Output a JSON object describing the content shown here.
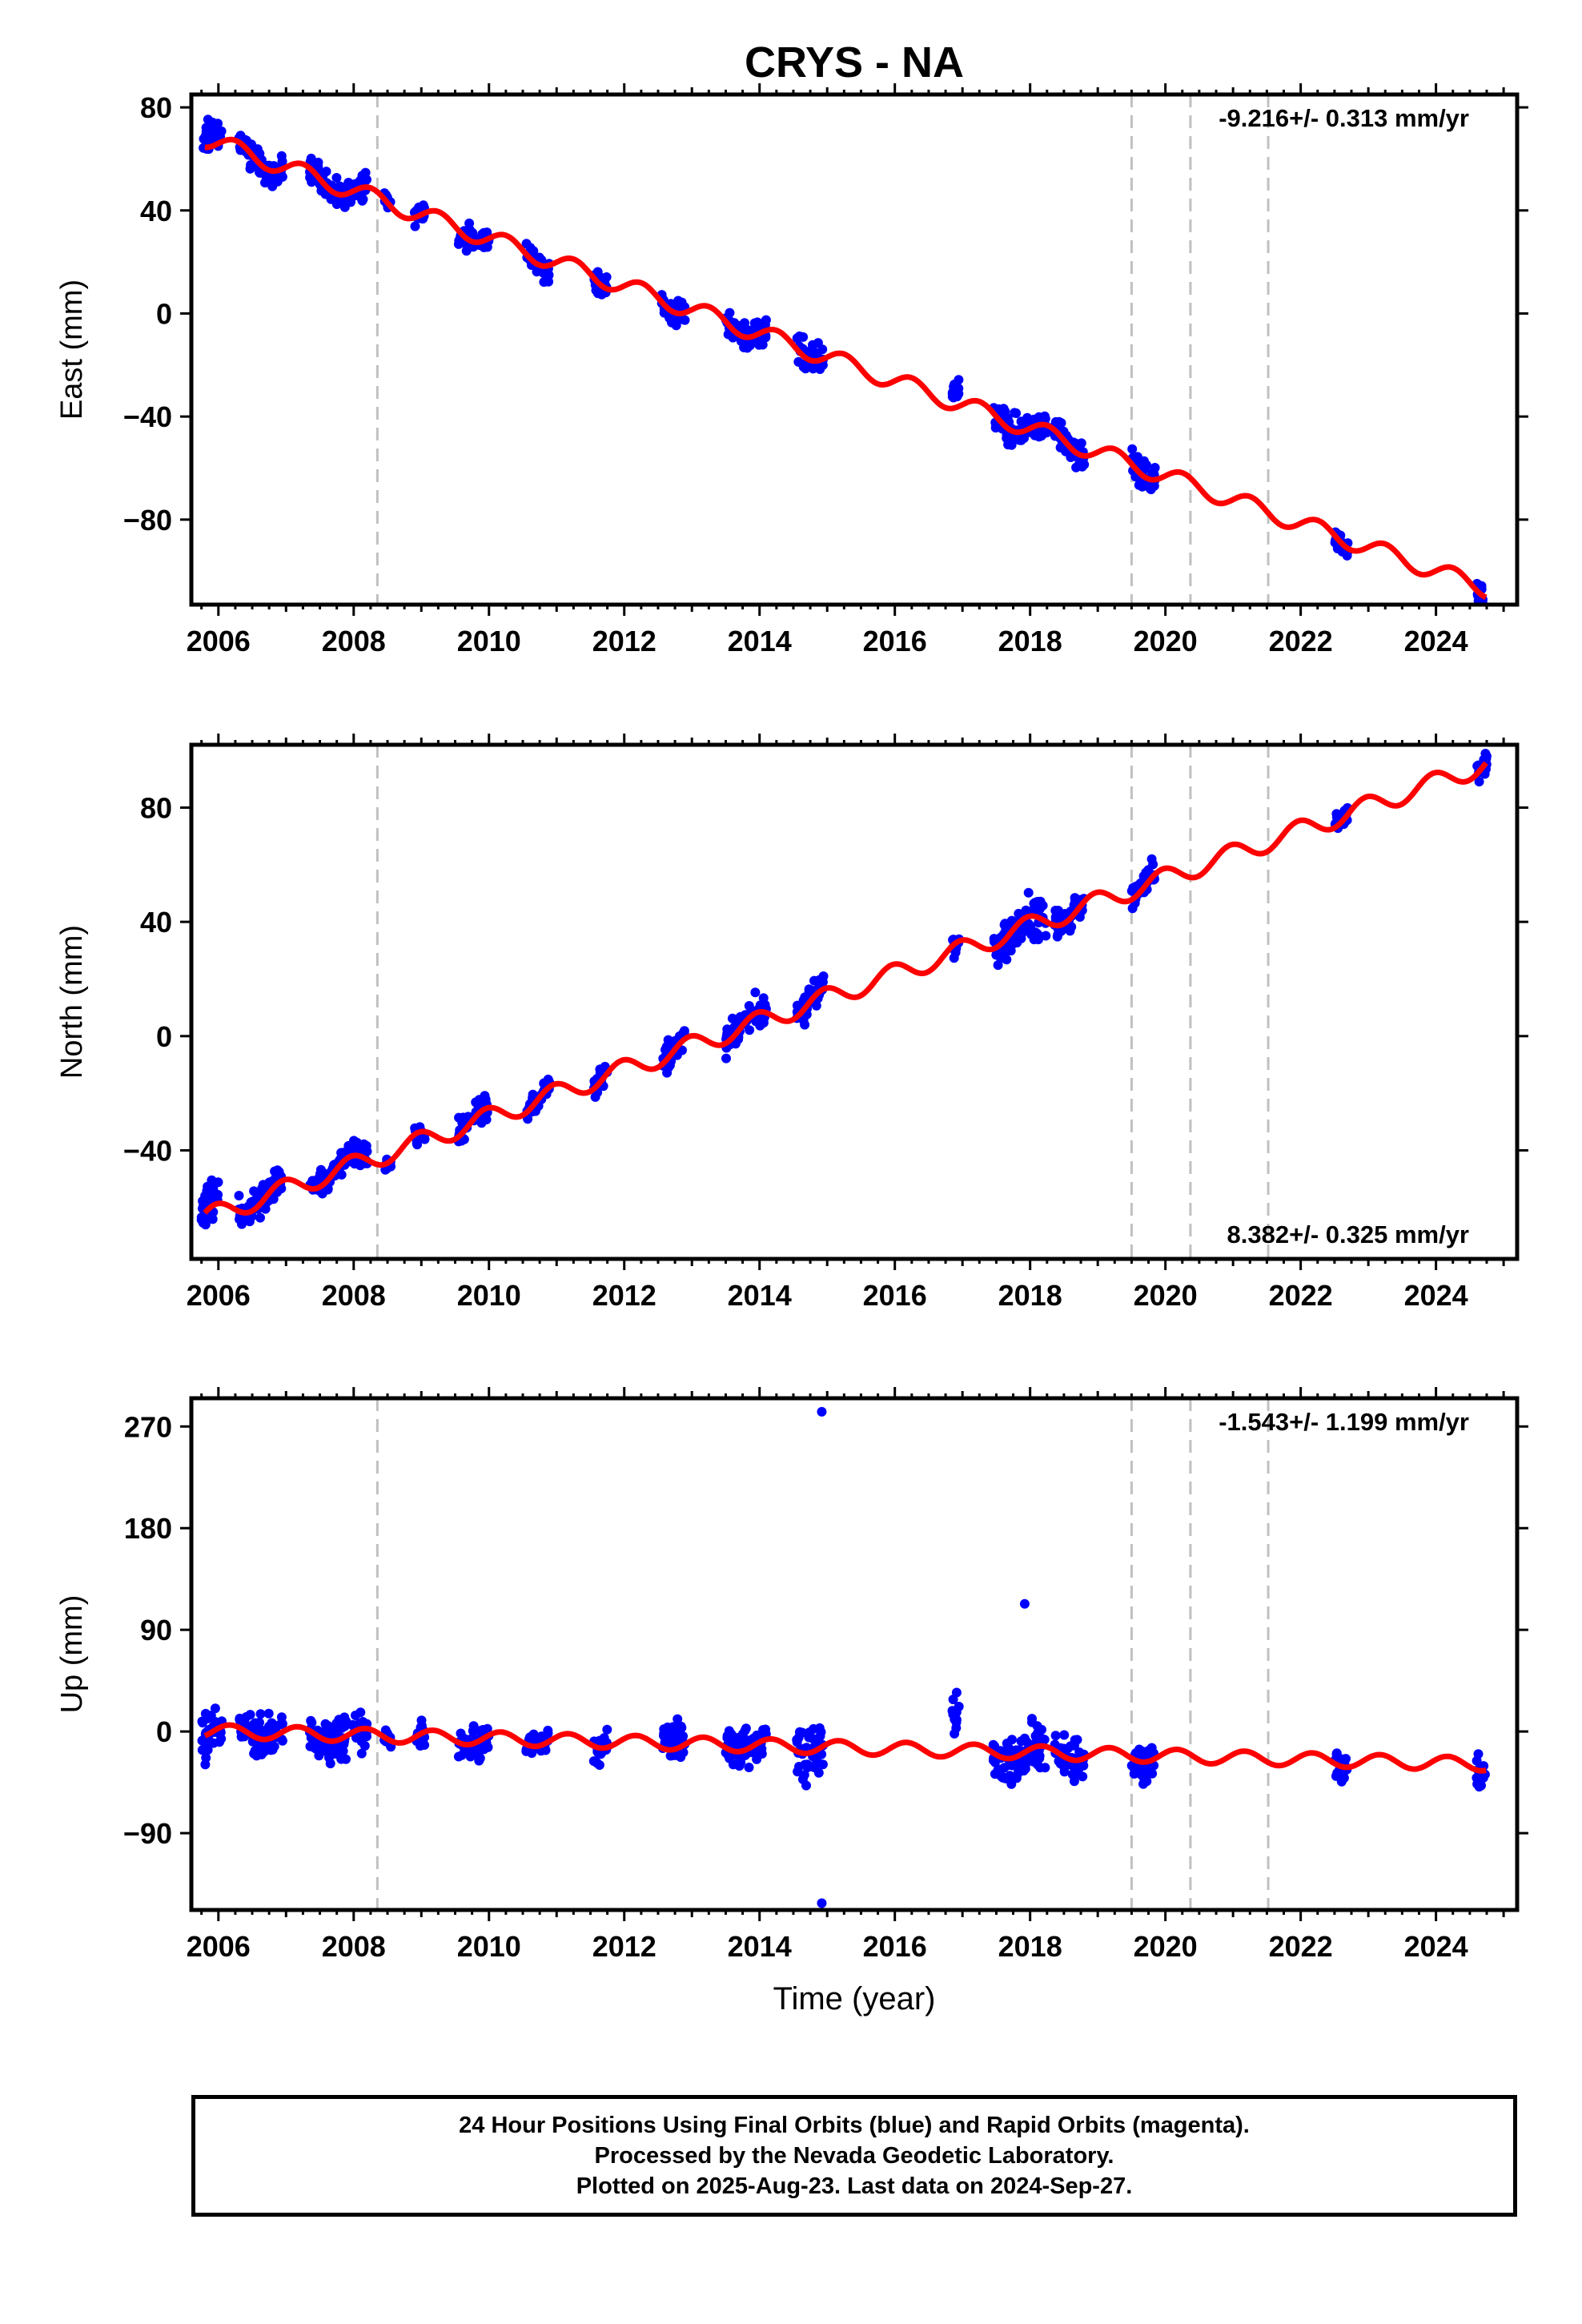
{
  "title": "CRYS - NA",
  "colors": {
    "final_orbits": "#0000ff",
    "model_fit": "#ff0000",
    "event_lines": "#c0c0c0",
    "frame": "#000000"
  },
  "footer": {
    "line1": "24 Hour Positions Using Final Orbits (blue) and Rapid Orbits (magenta).",
    "line2": "Processed by the Nevada Geodetic Laboratory.",
    "line3": "Plotted on 2025-Aug-23. Last data on 2024-Sep-27."
  },
  "chart_data": [
    {
      "type": "scatter",
      "component": "east",
      "ylabel": "East (mm)",
      "xlabel": "",
      "xlim": [
        2005.6,
        2025.2
      ],
      "ylim": [
        -113,
        85
      ],
      "xticks": [
        2006,
        2008,
        2010,
        2012,
        2014,
        2016,
        2018,
        2020,
        2022,
        2024
      ],
      "yticks": [
        -80,
        -40,
        0,
        40,
        80
      ],
      "rate_text": "-9.216+/- 0.313 mm/yr",
      "rate_position": "top-right",
      "event_lines": [
        2008.35,
        2019.5,
        2020.37,
        2021.52
      ],
      "trend": {
        "ref_year": 2006,
        "value_at_ref": 66,
        "rate_mm_yr": -9.216,
        "annual_amplitude": 3.5,
        "annual_phase": 0.0
      },
      "clusters": [
        {
          "start": 2005.75,
          "end": 2006.05,
          "offset": 4.0,
          "spread": 3.0
        },
        {
          "start": 2006.3,
          "end": 2006.95,
          "offset": -0.5,
          "spread": 2.5
        },
        {
          "start": 2007.35,
          "end": 2008.2,
          "offset": 0.5,
          "spread": 2.5
        },
        {
          "start": 2008.45,
          "end": 2008.55,
          "offset": 0.5,
          "spread": 1.5
        },
        {
          "start": 2008.9,
          "end": 2009.05,
          "offset": 1.0,
          "spread": 2.0
        },
        {
          "start": 2009.55,
          "end": 2010.0,
          "offset": 0.0,
          "spread": 2.5
        },
        {
          "start": 2010.55,
          "end": 2010.9,
          "offset": 0.0,
          "spread": 2.5
        },
        {
          "start": 2011.55,
          "end": 2011.75,
          "offset": 0.0,
          "spread": 2.5
        },
        {
          "start": 2012.55,
          "end": 2012.9,
          "offset": 0.5,
          "spread": 2.5
        },
        {
          "start": 2013.5,
          "end": 2014.1,
          "offset": 0.0,
          "spread": 2.5
        },
        {
          "start": 2014.55,
          "end": 2014.95,
          "offset": 0.0,
          "spread": 3.0
        },
        {
          "start": 2016.85,
          "end": 2016.95,
          "offset": 6.0,
          "spread": 4.0
        },
        {
          "start": 2017.45,
          "end": 2018.25,
          "offset": 0.0,
          "spread": 3.0
        },
        {
          "start": 2018.35,
          "end": 2018.8,
          "offset": 0.0,
          "spread": 2.5
        },
        {
          "start": 2019.5,
          "end": 2019.85,
          "offset": 0.0,
          "spread": 2.5
        },
        {
          "start": 2022.5,
          "end": 2022.7,
          "offset": 0.0,
          "spread": 2.0
        },
        {
          "start": 2024.6,
          "end": 2024.75,
          "offset": 0.0,
          "spread": 2.0
        }
      ]
    },
    {
      "type": "scatter",
      "component": "north",
      "ylabel": "North (mm)",
      "xlabel": "",
      "xlim": [
        2005.6,
        2025.2
      ],
      "ylim": [
        -78,
        102
      ],
      "xticks": [
        2006,
        2008,
        2010,
        2012,
        2014,
        2016,
        2018,
        2020,
        2022,
        2024
      ],
      "yticks": [
        -40,
        0,
        40,
        80
      ],
      "rate_text": "8.382+/- 0.325 mm/yr",
      "rate_position": "bottom-right",
      "event_lines": [
        2008.35,
        2019.5,
        2020.37,
        2021.52
      ],
      "trend": {
        "ref_year": 2006,
        "value_at_ref": -62,
        "rate_mm_yr": 8.382,
        "annual_amplitude": 3.5,
        "annual_phase": 1.8
      },
      "clusters": [
        {
          "start": 2005.75,
          "end": 2006.0,
          "offset": 2.0,
          "spread": 3.5
        },
        {
          "start": 2006.3,
          "end": 2006.95,
          "offset": 1.0,
          "spread": 2.5
        },
        {
          "start": 2007.35,
          "end": 2008.2,
          "offset": 1.0,
          "spread": 2.5
        },
        {
          "start": 2008.45,
          "end": 2008.55,
          "offset": 0.0,
          "spread": 1.5
        },
        {
          "start": 2008.9,
          "end": 2009.05,
          "offset": -1.0,
          "spread": 2.0
        },
        {
          "start": 2009.55,
          "end": 2010.0,
          "offset": 1.0,
          "spread": 2.5
        },
        {
          "start": 2010.55,
          "end": 2010.9,
          "offset": 0.5,
          "spread": 2.0
        },
        {
          "start": 2011.55,
          "end": 2011.75,
          "offset": 0.5,
          "spread": 2.0
        },
        {
          "start": 2012.55,
          "end": 2012.9,
          "offset": 0.5,
          "spread": 2.0
        },
        {
          "start": 2013.5,
          "end": 2014.1,
          "offset": 0.5,
          "spread": 2.5
        },
        {
          "start": 2014.55,
          "end": 2014.95,
          "offset": 0.5,
          "spread": 2.5
        },
        {
          "start": 2016.85,
          "end": 2016.95,
          "offset": 0.0,
          "spread": 2.0
        },
        {
          "start": 2017.45,
          "end": 2018.25,
          "offset": 0.0,
          "spread": 3.5
        },
        {
          "start": 2018.35,
          "end": 2018.8,
          "offset": 0.5,
          "spread": 2.5
        },
        {
          "start": 2019.5,
          "end": 2019.85,
          "offset": 0.5,
          "spread": 2.5
        },
        {
          "start": 2022.5,
          "end": 2022.7,
          "offset": 1.0,
          "spread": 2.0
        },
        {
          "start": 2024.6,
          "end": 2024.75,
          "offset": 0.0,
          "spread": 2.0
        }
      ]
    },
    {
      "type": "scatter",
      "component": "up",
      "ylabel": "Up (mm)",
      "xlabel": "Time (year)",
      "xlim": [
        2005.6,
        2025.2
      ],
      "ylim": [
        -158,
        295
      ],
      "xticks": [
        2006,
        2008,
        2010,
        2012,
        2014,
        2016,
        2018,
        2020,
        2022,
        2024
      ],
      "yticks": [
        -90,
        0,
        90,
        180,
        270
      ],
      "rate_text": "-1.543+/- 1.199 mm/yr",
      "rate_position": "top-right",
      "event_lines": [
        2008.35,
        2019.5,
        2020.37,
        2021.52
      ],
      "trend": {
        "ref_year": 2006,
        "value_at_ref": 0,
        "rate_mm_yr": -1.543,
        "annual_amplitude": 6.0,
        "annual_phase": 0.5
      },
      "clusters": [
        {
          "start": 2005.75,
          "end": 2006.05,
          "offset": 0.0,
          "spread": 10.0
        },
        {
          "start": 2006.3,
          "end": 2006.95,
          "offset": 0.0,
          "spread": 8.0
        },
        {
          "start": 2007.35,
          "end": 2008.2,
          "offset": 0.0,
          "spread": 9.0
        },
        {
          "start": 2008.45,
          "end": 2008.55,
          "offset": 0.0,
          "spread": 5.0
        },
        {
          "start": 2008.9,
          "end": 2009.05,
          "offset": 0.0,
          "spread": 7.0
        },
        {
          "start": 2009.55,
          "end": 2010.0,
          "offset": 0.0,
          "spread": 7.0
        },
        {
          "start": 2010.55,
          "end": 2010.9,
          "offset": 0.0,
          "spread": 6.0
        },
        {
          "start": 2011.55,
          "end": 2011.75,
          "offset": 0.0,
          "spread": 7.0
        },
        {
          "start": 2012.55,
          "end": 2012.9,
          "offset": 8.0,
          "spread": 9.0
        },
        {
          "start": 2013.5,
          "end": 2014.1,
          "offset": 3.0,
          "spread": 9.0
        },
        {
          "start": 2014.55,
          "end": 2014.95,
          "offset": 0.0,
          "spread": 11.0
        },
        {
          "start": 2016.85,
          "end": 2016.95,
          "offset": 30.0,
          "spread": 8.0
        },
        {
          "start": 2017.45,
          "end": 2018.25,
          "offset": -2.0,
          "spread": 10.0
        },
        {
          "start": 2018.35,
          "end": 2018.8,
          "offset": 0.0,
          "spread": 9.0
        },
        {
          "start": 2019.5,
          "end": 2019.85,
          "offset": 0.0,
          "spread": 9.0
        },
        {
          "start": 2022.5,
          "end": 2022.7,
          "offset": 0.0,
          "spread": 7.0
        },
        {
          "start": 2024.6,
          "end": 2024.75,
          "offset": -3.0,
          "spread": 8.0
        }
      ],
      "outliers": [
        {
          "x": 2014.92,
          "y": 283
        },
        {
          "x": 2014.92,
          "y": -152
        },
        {
          "x": 2017.92,
          "y": 113
        }
      ]
    }
  ]
}
